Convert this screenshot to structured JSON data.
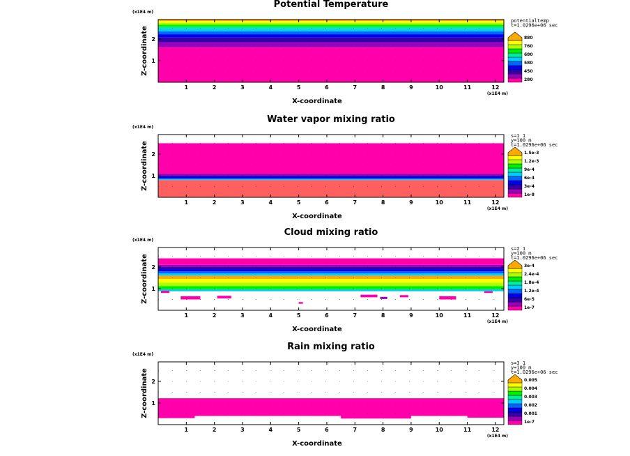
{
  "chart_data": [
    {
      "type": "heatmap",
      "title": "Potential Temperature",
      "xlabel": "X-coordinate",
      "ylabel": "Z-coordinate",
      "x_unit": "(x1E4 m)",
      "y_unit": "(x1E4 m)",
      "xlim": [
        0,
        12.3
      ],
      "ylim": [
        0,
        2.9
      ],
      "x_ticks": [
        1,
        2,
        3,
        4,
        5,
        6,
        7,
        8,
        9,
        10,
        11,
        12
      ],
      "y_ticks": [
        1,
        2
      ],
      "info": [
        "potentialtemp",
        "t=1.0296e+06 sec"
      ],
      "colorbar": {
        "labels": [
          "280",
          "450",
          "580",
          "680",
          "760",
          "880"
        ],
        "colors": [
          "#ff00aa",
          "#9900bb",
          "#3300aa",
          "#0000ee",
          "#0066ff",
          "#00ccff",
          "#00ee99",
          "#00ee00",
          "#aaff00",
          "#ffff00",
          "#ffaa00"
        ]
      },
      "layers": [
        {
          "z0": 0,
          "z1": 1.62,
          "color": "#ff00aa"
        },
        {
          "z0": 1.62,
          "z1": 1.85,
          "color": "#9900bb"
        },
        {
          "z0": 1.85,
          "z1": 2.07,
          "color": "#3300aa"
        },
        {
          "z0": 2.07,
          "z1": 2.22,
          "color": "#0000ee"
        },
        {
          "z0": 2.22,
          "z1": 2.35,
          "color": "#0066ff"
        },
        {
          "z0": 2.35,
          "z1": 2.47,
          "color": "#00ccff"
        },
        {
          "z0": 2.47,
          "z1": 2.57,
          "color": "#00ee99"
        },
        {
          "z0": 2.57,
          "z1": 2.66,
          "color": "#00ee00"
        },
        {
          "z0": 2.66,
          "z1": 2.75,
          "color": "#aaff00"
        },
        {
          "z0": 2.75,
          "z1": 2.83,
          "color": "#ffff00"
        },
        {
          "z0": 2.83,
          "z1": 2.9,
          "color": "#ffaa00"
        }
      ],
      "patches": []
    },
    {
      "type": "heatmap",
      "title": "Water vapor mixing ratio",
      "xlabel": "X-coordinate",
      "ylabel": "Z-coordinate",
      "x_unit": "(x1E4 m)",
      "y_unit": "(x1E4 m)",
      "xlim": [
        0,
        12.3
      ],
      "ylim": [
        0,
        2.9
      ],
      "x_ticks": [
        1,
        2,
        3,
        4,
        5,
        6,
        7,
        8,
        9,
        10,
        11,
        12
      ],
      "y_ticks": [
        1,
        2
      ],
      "info": [
        "s=1 1",
        "y=100 m",
        "t=1.0296e+06 sec"
      ],
      "colorbar": {
        "labels": [
          "1e-8",
          "3e-4",
          "6e-4",
          "9e-4",
          "1.2e-3",
          "1.5e-3"
        ],
        "colors": [
          "#ff00aa",
          "#9900bb",
          "#3300aa",
          "#0000ee",
          "#0066ff",
          "#00ccff",
          "#00ee99",
          "#00ee00",
          "#aaff00",
          "#ffff00",
          "#ffaa00"
        ]
      },
      "layers": [
        {
          "z0": 0,
          "z1": 0.8,
          "color": "#ff5f5f"
        },
        {
          "z0": 0.8,
          "z1": 0.86,
          "color": "#00ccff"
        },
        {
          "z0": 0.86,
          "z1": 0.95,
          "color": "#0000ee"
        },
        {
          "z0": 0.95,
          "z1": 1.02,
          "color": "#3300aa"
        },
        {
          "z0": 1.02,
          "z1": 1.08,
          "color": "#9900bb"
        },
        {
          "z0": 1.08,
          "z1": 2.5,
          "color": "#ff00aa"
        }
      ],
      "patches": []
    },
    {
      "type": "heatmap",
      "title": "Cloud mixing ratio",
      "xlabel": "X-coordinate",
      "ylabel": "Z-coordinate",
      "x_unit": "(x1E4 m)",
      "y_unit": "(x1E4 m)",
      "xlim": [
        0,
        12.3
      ],
      "ylim": [
        0,
        2.9
      ],
      "x_ticks": [
        1,
        2,
        3,
        4,
        5,
        6,
        7,
        8,
        9,
        10,
        11,
        12
      ],
      "y_ticks": [
        1,
        2
      ],
      "info": [
        "s=2 1",
        "y=100 m",
        "t=1.0296e+06 sec"
      ],
      "colorbar": {
        "labels": [
          "1e-7",
          "6e-5",
          "1.2e-4",
          "1.8e-4",
          "2.4e-4",
          "3e-4"
        ],
        "colors": [
          "#ff00aa",
          "#9900bb",
          "#3300aa",
          "#0000ee",
          "#0066ff",
          "#00ccff",
          "#00ee99",
          "#00ee00",
          "#aaff00",
          "#ffff00",
          "#ffaa00"
        ]
      },
      "layers": [
        {
          "z0": 0.88,
          "z1": 0.97,
          "color": "#00ccff"
        },
        {
          "z0": 0.97,
          "z1": 1.12,
          "color": "#00ee00"
        },
        {
          "z0": 1.12,
          "z1": 1.28,
          "color": "#aaff00"
        },
        {
          "z0": 1.28,
          "z1": 1.45,
          "color": "#ffff00"
        },
        {
          "z0": 1.45,
          "z1": 1.6,
          "color": "#ffaa00"
        },
        {
          "z0": 1.6,
          "z1": 1.7,
          "color": "#00ccff"
        },
        {
          "z0": 1.7,
          "z1": 1.8,
          "color": "#0066ff"
        },
        {
          "z0": 1.8,
          "z1": 1.9,
          "color": "#0000ee"
        },
        {
          "z0": 1.9,
          "z1": 2.0,
          "color": "#3300aa"
        },
        {
          "z0": 2.0,
          "z1": 2.1,
          "color": "#9900bb"
        },
        {
          "z0": 2.1,
          "z1": 2.4,
          "color": "#ff00aa"
        }
      ],
      "patches": [
        {
          "x": 0.1,
          "z": 0.8,
          "w": 0.3,
          "h": 0.1,
          "color": "#ff00aa"
        },
        {
          "x": 0.8,
          "z": 0.5,
          "w": 0.7,
          "h": 0.15,
          "color": "#ff00aa"
        },
        {
          "x": 2.1,
          "z": 0.55,
          "w": 0.5,
          "h": 0.12,
          "color": "#ff00aa"
        },
        {
          "x": 5.0,
          "z": 0.3,
          "w": 0.15,
          "h": 0.08,
          "color": "#ff00aa"
        },
        {
          "x": 7.2,
          "z": 0.6,
          "w": 0.6,
          "h": 0.12,
          "color": "#ff00aa"
        },
        {
          "x": 7.9,
          "z": 0.52,
          "w": 0.25,
          "h": 0.1,
          "color": "#9900bb"
        },
        {
          "x": 8.6,
          "z": 0.6,
          "w": 0.3,
          "h": 0.1,
          "color": "#ff00aa"
        },
        {
          "x": 10.0,
          "z": 0.5,
          "w": 0.6,
          "h": 0.15,
          "color": "#ff00aa"
        },
        {
          "x": 11.6,
          "z": 0.8,
          "w": 0.3,
          "h": 0.08,
          "color": "#ff00aa"
        }
      ]
    },
    {
      "type": "heatmap",
      "title": "Rain mixing ratio",
      "xlabel": "X-coordinate",
      "ylabel": "Z-coordinate",
      "x_unit": "(x1E4 m)",
      "y_unit": "(x1E4 m)",
      "xlim": [
        0,
        12.3
      ],
      "ylim": [
        0,
        2.9
      ],
      "x_ticks": [
        1,
        2,
        3,
        4,
        5,
        6,
        7,
        8,
        9,
        10,
        11,
        12
      ],
      "y_ticks": [
        1,
        2
      ],
      "info": [
        "s=3 1",
        "y=100 m",
        "t=1.0296e+06 sec"
      ],
      "colorbar": {
        "labels": [
          "1e-7",
          "0.001",
          "0.002",
          "0.003",
          "0.004",
          "0.005"
        ],
        "colors": [
          "#ff00aa",
          "#9900bb",
          "#3300aa",
          "#0000ee",
          "#0066ff",
          "#00ccff",
          "#00ee99",
          "#00ee00",
          "#aaff00",
          "#ffff00",
          "#ffaa00"
        ]
      },
      "layers": [
        {
          "z0": 0.4,
          "z1": 1.22,
          "color": "#ff00aa"
        }
      ],
      "patches": [
        {
          "x": 0,
          "z": 0.3,
          "w": 1.3,
          "h": 0.12,
          "color": "#ff00aa"
        },
        {
          "x": 6.5,
          "z": 0.28,
          "w": 2.5,
          "h": 0.14,
          "color": "#ff00aa"
        },
        {
          "x": 11.0,
          "z": 0.32,
          "w": 1.3,
          "h": 0.1,
          "color": "#ff00aa"
        }
      ]
    }
  ]
}
